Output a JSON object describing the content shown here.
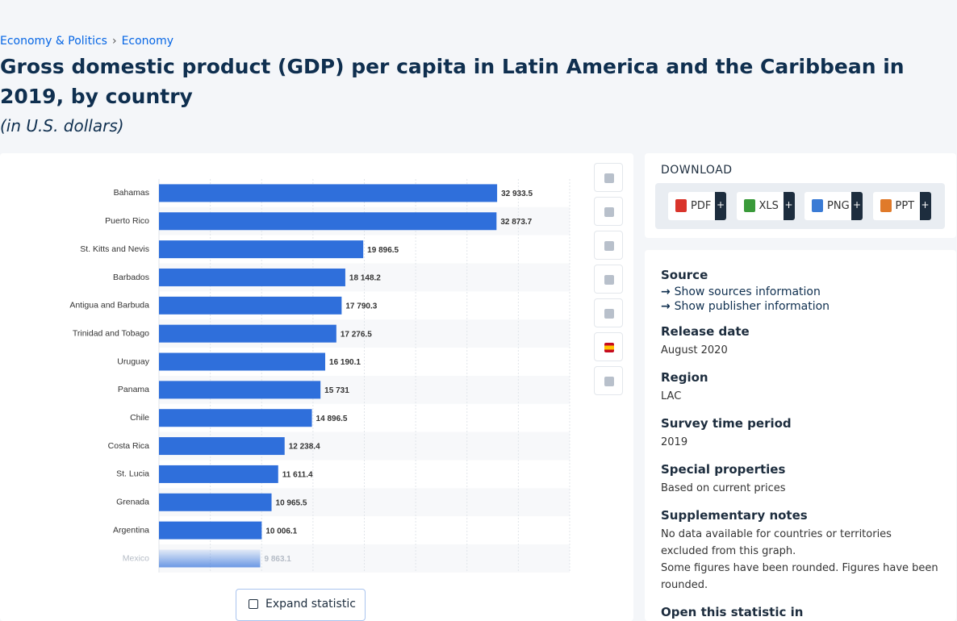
{
  "breadcrumb": [
    "Economy & Politics",
    "Economy"
  ],
  "header": {
    "title": "Gross domestic product (GDP) per capita in Latin America and the Caribbean in 2019, by country",
    "subtitle": "(in U.S. dollars)"
  },
  "chart_data": {
    "type": "hbar",
    "color": "#2f6fdb",
    "categories": [
      "Bahamas",
      "Puerto Rico",
      "St. Kitts and Nevis",
      "Barbados",
      "Antigua and Barbuda",
      "Trinidad and Tobago",
      "Uruguay",
      "Panama",
      "Chile",
      "Costa Rica",
      "St. Lucia",
      "Grenada",
      "Argentina",
      "Mexico"
    ],
    "values": [
      32933.5,
      32873.7,
      19896.5,
      18148.2,
      17790.3,
      17276.5,
      16190.1,
      15731,
      14896.5,
      12238.4,
      11611.4,
      10965.5,
      10006.1,
      9863.1
    ],
    "value_labels": [
      "32 933.5",
      "32 873.7",
      "19 896.5",
      "18 148.2",
      "17 790.3",
      "17 276.5",
      "16 190.1",
      "15 731",
      "14 896.5",
      "12 238.4",
      "11 611.4",
      "10 965.5",
      "10 006.1",
      "9 863.1"
    ],
    "xlim": [
      0,
      40000
    ],
    "xticks": [
      0,
      5000,
      10000,
      15000,
      20000,
      25000,
      30000,
      35000,
      40000
    ],
    "grid": true
  },
  "expand": "Expand statistic",
  "download": {
    "label": "DOWNLOAD",
    "formats": [
      "PDF",
      "XLS",
      "PNG",
      "PPT"
    ],
    "plus": "+"
  },
  "details": {
    "source": "Source",
    "links": [
      "Show sources information",
      "Show publisher information"
    ],
    "sections": [
      {
        "heading": "Release date",
        "lines": [
          "August 2020"
        ]
      },
      {
        "heading": "Region",
        "lines": [
          "LAC"
        ]
      },
      {
        "heading": "Survey time period",
        "lines": [
          "2019"
        ]
      },
      {
        "heading": "Special properties",
        "lines": [
          "Based on current prices"
        ]
      },
      {
        "heading": "Supplementary notes",
        "lines": [
          "No data available for countries or territories excluded from this graph.",
          "Some figures have been rounded. Figures have been rounded."
        ]
      },
      {
        "heading": "Open this statistic in",
        "lines": []
      }
    ]
  }
}
